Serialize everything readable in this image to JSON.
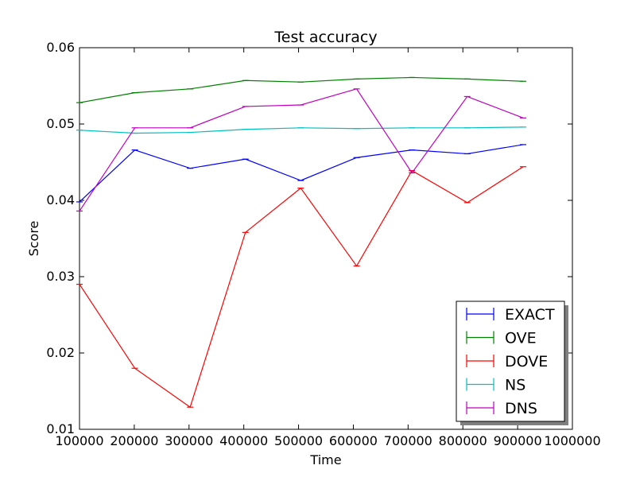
{
  "chart_data": {
    "type": "line",
    "title": "Test accuracy",
    "xlabel": "Time",
    "ylabel": "Score",
    "xlim": [
      100000,
      1000000
    ],
    "ylim": [
      0.01,
      0.06
    ],
    "xticks": [
      "100000",
      "200000",
      "300000",
      "400000",
      "500000",
      "600000",
      "700000",
      "800000",
      "900000",
      "1000000"
    ],
    "yticks": [
      "0.01",
      "0.02",
      "0.03",
      "0.04",
      "0.05",
      "0.06"
    ],
    "legend_position": "lower-right",
    "grid": false,
    "x": [
      100000,
      201000,
      302000,
      403000,
      504000,
      606000,
      707000,
      808000,
      910000
    ],
    "series": [
      {
        "name": "EXACT",
        "color": "#0000ff",
        "values": [
          0.0398,
          0.0466,
          0.0442,
          0.0454,
          0.0426,
          0.0456,
          0.0466,
          0.0461,
          0.0473
        ]
      },
      {
        "name": "OVE",
        "color": "#008000",
        "values": [
          0.0528,
          0.0541,
          0.0546,
          0.0557,
          0.0555,
          0.0559,
          0.0561,
          0.0559,
          0.0556
        ]
      },
      {
        "name": "DOVE",
        "color": "#ff0000",
        "values": [
          0.029,
          0.018,
          0.0129,
          0.0358,
          0.0416,
          0.0314,
          0.0439,
          0.0397,
          0.0444
        ]
      },
      {
        "name": "NS",
        "color": "#00bfbf",
        "values": [
          0.0492,
          0.0488,
          0.0489,
          0.0493,
          0.0495,
          0.0494,
          0.0495,
          0.0495,
          0.0496
        ]
      },
      {
        "name": "DNS",
        "color": "#bf00bf",
        "values": [
          0.0386,
          0.0495,
          0.0495,
          0.0523,
          0.0525,
          0.0546,
          0.0436,
          0.0536,
          0.0508
        ]
      }
    ]
  }
}
